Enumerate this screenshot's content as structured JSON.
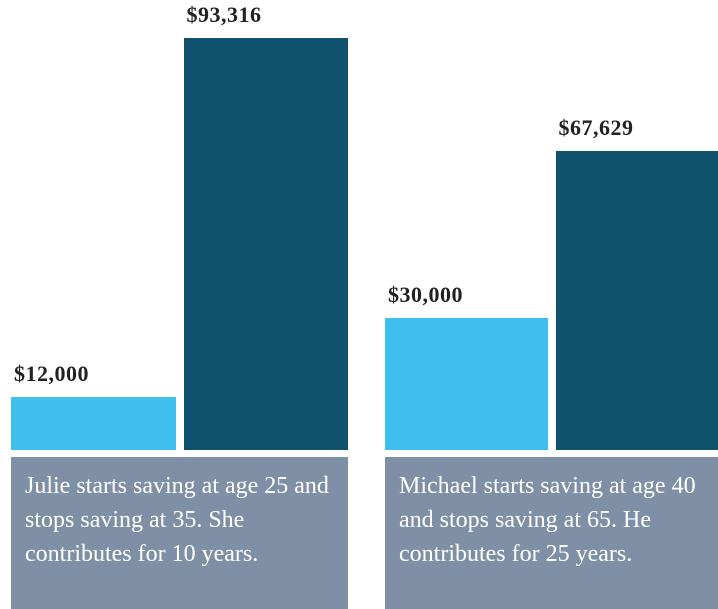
{
  "chart_data": {
    "type": "bar",
    "categories": [
      "Julie starts saving at age 25 and stops saving at 35. She contributes for 10 years.",
      "Michael starts saving at age 40 and stops saving at 65. He contributes for 25 years."
    ],
    "series": [
      {
        "color": "#3fbfee",
        "values": [
          12000,
          30000
        ],
        "value_labels": [
          "$12,000",
          "$30,000"
        ]
      },
      {
        "color": "#10516e",
        "values": [
          93316,
          67629
        ],
        "value_labels": [
          "$93,316",
          "$67,629"
        ]
      }
    ]
  }
}
